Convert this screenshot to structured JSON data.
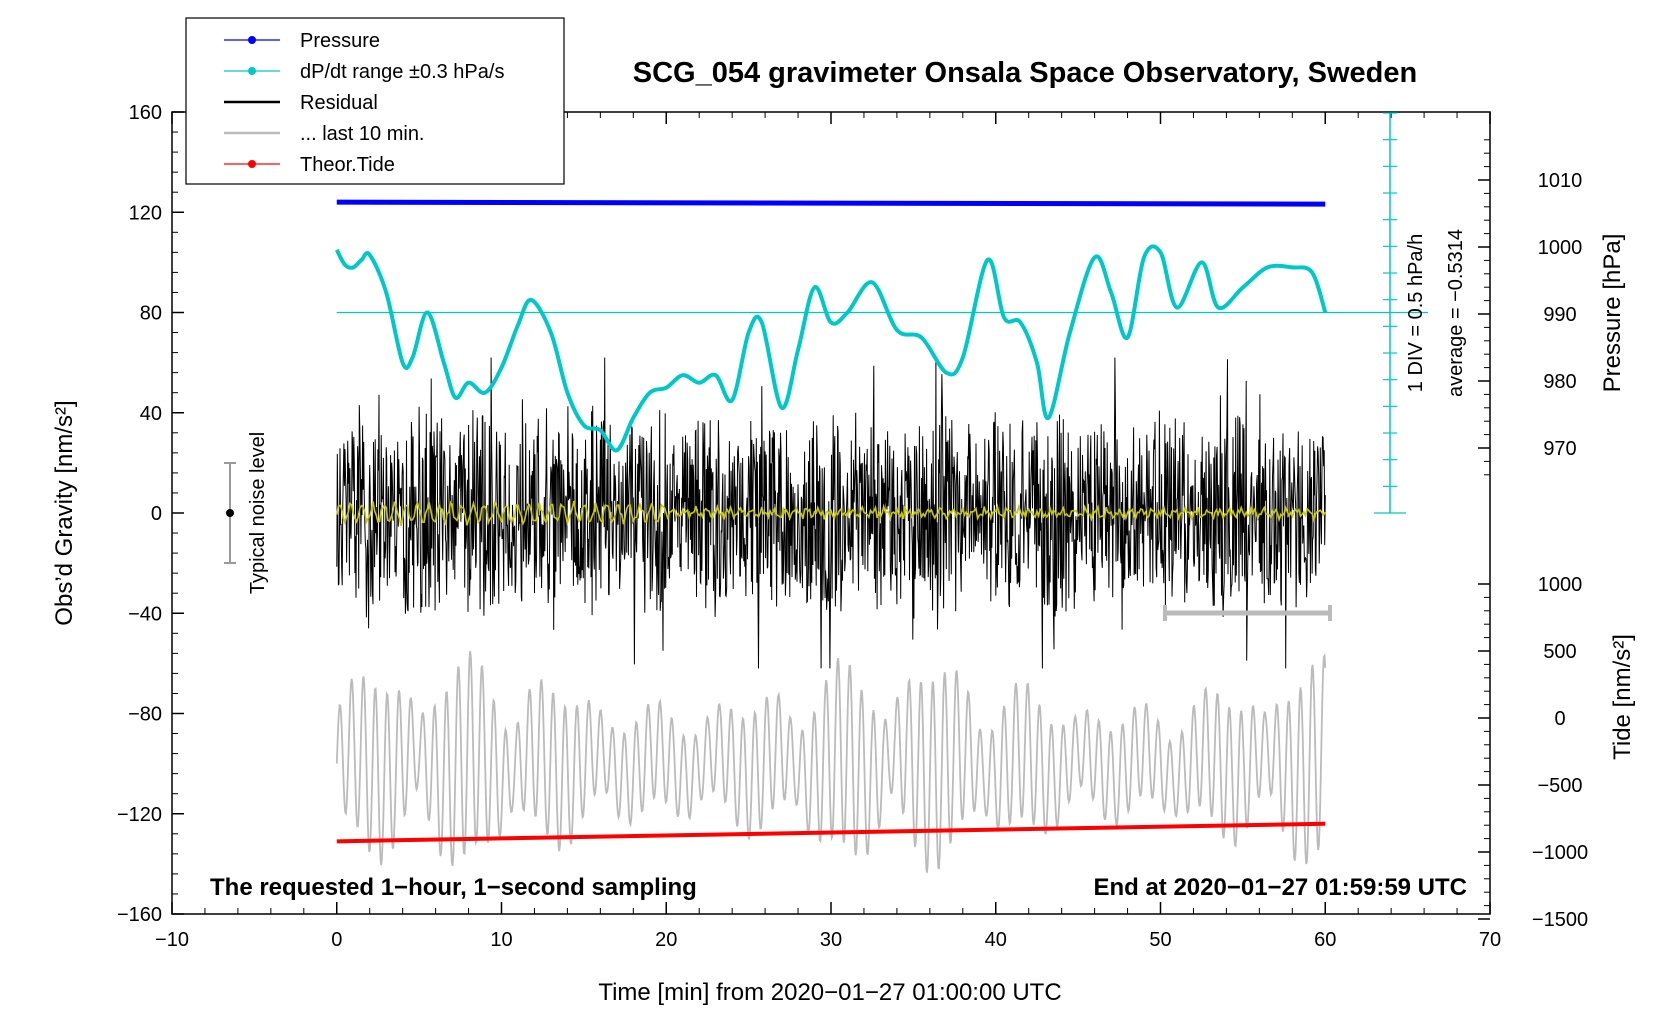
{
  "chart_data": {
    "type": "line",
    "title": "SCG_054 gravimeter Onsala Space Observatory, Sweden",
    "xlabel": "Time [min] from 2020−01−27 01:00:00 UTC",
    "ylabel_left": "Obs’d Gravity [nm/s²]",
    "ylabel_right_top": "Pressure [hPa]",
    "ylabel_right_bottom": "Tide [nm/s²]",
    "xlim": [
      -10,
      70
    ],
    "ylim_left": [
      -160,
      160
    ],
    "x_ticks": [
      "−10",
      "0",
      "10",
      "20",
      "30",
      "40",
      "50",
      "60",
      "70"
    ],
    "x_tick_values": [
      -10,
      0,
      10,
      20,
      30,
      40,
      50,
      60,
      70
    ],
    "y_left_ticks": [
      "160",
      "120",
      "80",
      "40",
      "0",
      "−40",
      "−80",
      "−120",
      "−160"
    ],
    "y_left_tick_values": [
      160,
      120,
      80,
      40,
      0,
      -40,
      -80,
      -120,
      -160
    ],
    "pressure_ticks": [
      "1010",
      "1000",
      "990",
      "980",
      "970"
    ],
    "pressure_tick_values": [
      1010,
      1000,
      990,
      980,
      970
    ],
    "tide_ticks": [
      "1000",
      "500",
      "0",
      "−500",
      "−1000",
      "−1500"
    ],
    "tide_tick_values": [
      1000,
      500,
      0,
      -500,
      -1000,
      -1500
    ],
    "legend": [
      {
        "label": "Pressure",
        "color": "#0000ff",
        "marker": true
      },
      {
        "label": "dP/dt range ±0.3 hPa/s",
        "color": "#00c8c8",
        "marker": true
      },
      {
        "label": "Residual",
        "color": "#000000",
        "marker": false
      },
      {
        "label": "... last 10 min.",
        "color": "#bbbbbb",
        "marker": false
      },
      {
        "label": "Theor.Tide",
        "color": "#ff0000",
        "marker": true
      }
    ],
    "annotations": {
      "noise": "Typical noise level",
      "div": "1 DIV = 0.5 hPa/h",
      "average": "average = −0.5314",
      "bottom_left": "The requested 1−hour, 1−second sampling",
      "bottom_right": "End at 2020−01−27 01:59:59 UTC"
    },
    "series": [
      {
        "name": "Pressure",
        "axis": "pressure_hPa",
        "color": "#0000ff",
        "x": [
          0,
          60
        ],
        "values": [
          1006.7,
          1006.4
        ]
      },
      {
        "name": "dP/dt",
        "axis": "gravity_display",
        "color": "#00c8c8",
        "x": [
          0,
          0.5,
          1,
          1.5,
          2,
          3,
          4,
          4.6,
          5.5,
          6.5,
          7.2,
          8,
          9,
          10,
          11,
          11.8,
          13,
          14,
          15,
          16,
          17,
          18,
          19,
          20,
          21,
          22,
          23,
          24,
          25,
          25.8,
          27,
          28,
          29,
          30,
          31,
          32.5,
          34,
          35.5,
          37,
          38,
          39.5,
          40.5,
          41.5,
          42.5,
          43.2,
          44.5,
          46,
          47,
          48,
          49,
          50,
          51,
          52.5,
          53.5,
          55,
          56.5,
          58,
          59.2,
          60
        ],
        "values": [
          105,
          99,
          98,
          101,
          103,
          88,
          60,
          62,
          80,
          60,
          46,
          52,
          48,
          58,
          75,
          85,
          72,
          48,
          35,
          33,
          25,
          38,
          48,
          50,
          55,
          52,
          55,
          45,
          72,
          76,
          42,
          65,
          90,
          76,
          80,
          92,
          73,
          70,
          56,
          62,
          101,
          78,
          76,
          60,
          38,
          72,
          102,
          88,
          70,
          102,
          104,
          82,
          100,
          82,
          90,
          98,
          98,
          96,
          80
        ]
      },
      {
        "name": "Residual",
        "axis": "gravity",
        "color": "#000000",
        "x_range": [
          0,
          60
        ],
        "amplitude_nm_s2": 60
      },
      {
        "name": "... last 10 min.",
        "axis": "gravity_display",
        "color": "#bbbbbb",
        "x_range": [
          0,
          60
        ],
        "center": -100,
        "amplitude": 40
      },
      {
        "name": "Theor.Tide",
        "axis": "gravity_display",
        "color": "#ff0000",
        "x": [
          0,
          60
        ],
        "values": [
          -131,
          -124
        ]
      }
    ]
  }
}
